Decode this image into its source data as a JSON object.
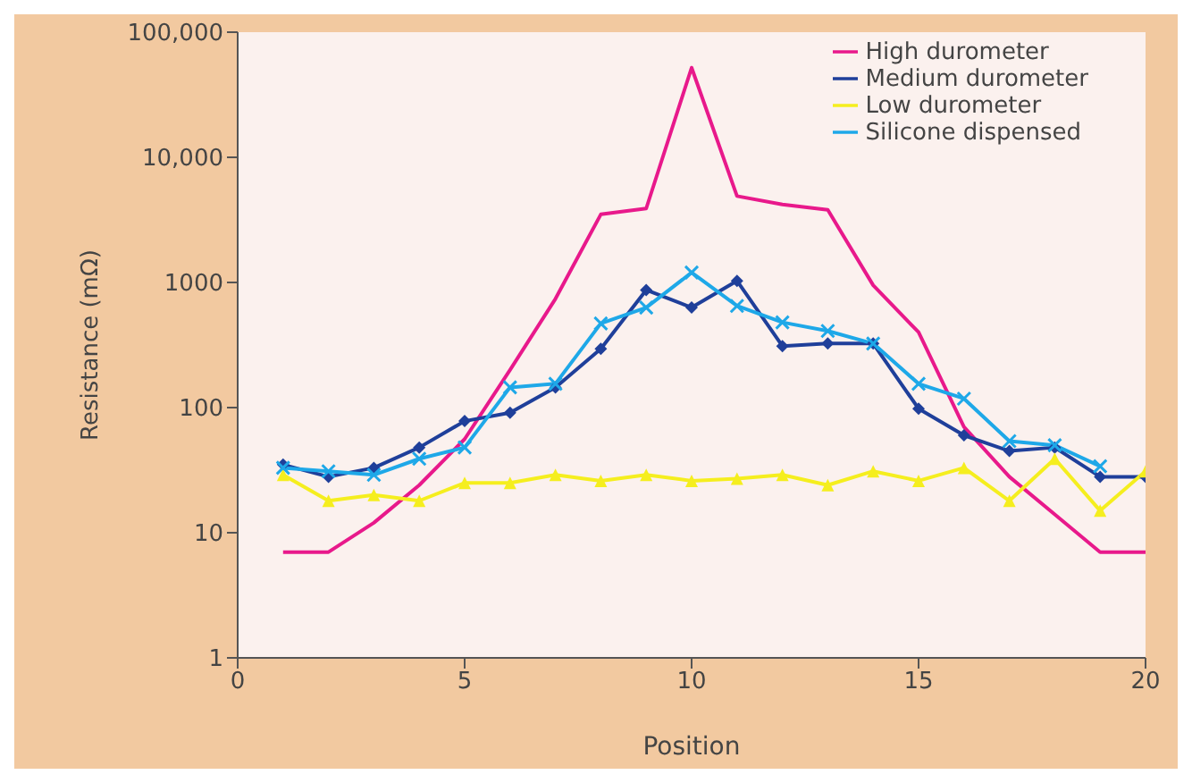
{
  "chart_data": {
    "type": "line",
    "xlabel": "Position",
    "ylabel": "Resistance (mΩ)",
    "x": [
      1,
      2,
      3,
      4,
      5,
      6,
      7,
      8,
      9,
      10,
      11,
      12,
      13,
      14,
      15,
      16,
      17,
      18,
      19,
      20
    ],
    "xlim": [
      0,
      20
    ],
    "xticks": [
      0,
      5,
      10,
      15,
      20
    ],
    "ylim": [
      1,
      100000
    ],
    "yticks": [
      1,
      10,
      100,
      1000,
      {
        "value": 10000,
        "label": "10,000"
      },
      {
        "value": 100000,
        "label": "100,000"
      }
    ],
    "log": "y",
    "grid": false,
    "legend": "top right",
    "series": [
      {
        "name": "High durometer",
        "color": "#e8198b",
        "marker": "none",
        "values": [
          7,
          7,
          12,
          24,
          56,
          200,
          740,
          3500,
          3900,
          52000,
          4900,
          4200,
          3800,
          950,
          400,
          70,
          28,
          14,
          7,
          7
        ]
      },
      {
        "name": "Medium durometer",
        "color": "#1f3f9a",
        "marker": "diamond",
        "values": [
          35,
          28,
          33,
          48,
          78,
          91,
          145,
          295,
          870,
          630,
          1030,
          310,
          325,
          325,
          98,
          60,
          45,
          48,
          28,
          28
        ]
      },
      {
        "name": "Low durometer",
        "color": "#f5ee1e",
        "marker": "triangle",
        "values": [
          29,
          18,
          20,
          18,
          25,
          25,
          29,
          26,
          29,
          26,
          27,
          29,
          24,
          31,
          26,
          33,
          18,
          39,
          15,
          31
        ]
      },
      {
        "name": "Silicone dispensed",
        "color": "#1ea8e8",
        "marker": "cross",
        "values": [
          33,
          31,
          29,
          39,
          48,
          145,
          155,
          470,
          630,
          1200,
          650,
          480,
          410,
          325,
          155,
          118,
          54,
          50,
          34,
          null
        ]
      }
    ]
  }
}
